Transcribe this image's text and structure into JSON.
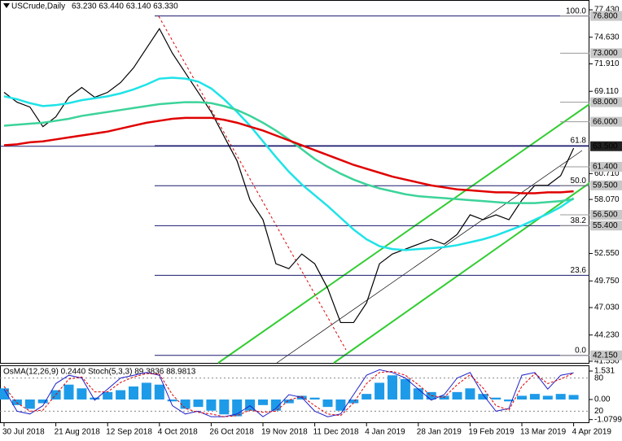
{
  "chart_data": [
    {
      "type": "line",
      "title": "USCrude,Daily",
      "quote": "63.230 63.440 63.140 63.330",
      "categories": [
        "30 Jul 2018",
        null,
        null,
        null,
        "21 Aug 2018",
        null,
        null,
        null,
        "12 Sep 2018",
        null,
        null,
        null,
        "4 Oct 2018",
        null,
        null,
        null,
        "26 Oct 2018",
        null,
        null,
        null,
        "19 Nov 2018",
        null,
        null,
        null,
        "11 Dec 2018",
        null,
        null,
        null,
        "4 Jan 2019",
        null,
        null,
        null,
        "28 Jan 2019",
        null,
        null,
        null,
        "19 Feb 2019",
        null,
        null,
        null,
        "13 Mar 2019",
        null,
        null,
        null,
        "4 Apr 2019"
      ],
      "series": [
        {
          "color": "#000000",
          "values": [
            69.0,
            68.0,
            67.5,
            65.5,
            66.5,
            68.5,
            69.5,
            68.5,
            69.0,
            70.0,
            71.5,
            73.5,
            75.5,
            73.0,
            71.0,
            69.0,
            67.0,
            64.5,
            62.0,
            58.0,
            56.0,
            51.5,
            51.0,
            52.5,
            51.5,
            49.0,
            45.5,
            45.5,
            47.5,
            51.5,
            52.5,
            53.0,
            53.5,
            54.0,
            53.5,
            54.5,
            56.5,
            56.0,
            56.5,
            56.0,
            58.0,
            59.5,
            59.5,
            60.5,
            63.3
          ]
        },
        {
          "color": "#1ee3e8",
          "values": [
            68.6,
            68.3,
            67.9,
            67.6,
            67.7,
            67.9,
            68.2,
            68.4,
            68.6,
            68.9,
            69.3,
            69.8,
            70.4,
            70.5,
            70.4,
            70.1,
            69.4,
            68.3,
            67.0,
            65.6,
            64.0,
            62.4,
            60.9,
            59.6,
            58.5,
            57.4,
            56.2,
            55.0,
            54.0,
            53.3,
            53.0,
            52.9,
            53.0,
            53.1,
            53.2,
            53.4,
            53.7,
            54.0,
            54.4,
            54.9,
            55.4,
            56.0,
            56.6,
            57.3,
            58.2
          ]
        },
        {
          "color": "#3cd39a",
          "values": [
            65.6,
            65.7,
            65.8,
            65.9,
            66.1,
            66.3,
            66.6,
            66.8,
            67.0,
            67.2,
            67.4,
            67.6,
            67.8,
            67.9,
            68.0,
            68.0,
            67.9,
            67.6,
            67.2,
            66.6,
            65.9,
            65.1,
            64.2,
            63.2,
            62.2,
            61.4,
            60.7,
            60.1,
            59.6,
            59.2,
            58.9,
            58.6,
            58.4,
            58.3,
            58.2,
            58.1,
            58.0,
            57.9,
            57.8,
            57.7,
            57.7,
            57.7,
            57.8,
            57.9,
            58.1
          ]
        },
        {
          "color": "#e00000",
          "values": [
            63.6,
            63.7,
            63.9,
            64.0,
            64.2,
            64.4,
            64.6,
            64.8,
            65.0,
            65.3,
            65.6,
            65.9,
            66.1,
            66.3,
            66.4,
            66.4,
            66.4,
            66.2,
            65.9,
            65.5,
            65.1,
            64.6,
            64.1,
            63.6,
            63.1,
            62.6,
            62.1,
            61.6,
            61.2,
            60.8,
            60.4,
            60.1,
            59.8,
            59.5,
            59.3,
            59.1,
            59.0,
            58.9,
            58.8,
            58.8,
            58.7,
            58.7,
            58.8,
            58.8,
            58.9
          ]
        }
      ],
      "ylim": [
        41.3,
        78.43
      ],
      "yticks": [
        {
          "value": 77.43,
          "label": "77.430"
        },
        {
          "value": 74.63,
          "label": "74.630"
        },
        {
          "value": 71.91,
          "label": "71.910"
        },
        {
          "value": 69.11,
          "label": "69.110"
        },
        {
          "value": 60.71,
          "label": "60.710"
        },
        {
          "value": 58.07,
          "label": "58.070"
        },
        {
          "value": 52.55,
          "label": "52.550"
        },
        {
          "value": 49.75,
          "label": "49.750"
        },
        {
          "value": 47.03,
          "label": "47.030"
        },
        {
          "value": 44.23,
          "label": "44.230"
        },
        {
          "value": 41.55,
          "label": "41.550"
        }
      ],
      "levels": [
        {
          "value": 76.8,
          "label": "76.800"
        },
        {
          "value": 73,
          "label": "73.000"
        },
        {
          "value": 68,
          "label": "68.000"
        },
        {
          "value": 66,
          "label": "66.000"
        },
        {
          "value": 61.4,
          "label": "61.400"
        },
        {
          "value": 59.5,
          "label": "59.500"
        },
        {
          "value": 56.5,
          "label": "56.500"
        },
        {
          "value": 55.4,
          "label": "55.400"
        },
        {
          "value": 42.15,
          "label": "42.150"
        }
      ],
      "current": {
        "value": 63.5,
        "label": "63.500"
      },
      "fib_range": [
        42.15,
        76.8
      ],
      "fib": [
        {
          "value": 100,
          "label": "100.0"
        },
        {
          "value": 61.8,
          "label": "61.8"
        },
        {
          "value": 50,
          "label": "50.0"
        },
        {
          "value": 38.2,
          "label": "38.2"
        },
        {
          "value": 23.6,
          "label": "23.6"
        },
        {
          "value": 0,
          "label": "0.0"
        }
      ]
    },
    {
      "type": "bar",
      "title": "OsMA(12,26,9) 0.2440  Stoch(5,3,3) 89.3836 88.9813",
      "series": [
        {
          "color": "#1e9be8",
          "values": [
            0.6,
            -0.3,
            -0.5,
            -0.2,
            0.5,
            0.8,
            0.6,
            0.1,
            0.4,
            0.5,
            0.7,
            0.9,
            0.8,
            -0.1,
            -0.5,
            -0.4,
            -0.6,
            -0.8,
            -0.9,
            -0.6,
            -0.3,
            -0.6,
            -0.2,
            0.2,
            0.1,
            -0.4,
            -0.6,
            -0.2,
            0.3,
            0.9,
            1.3,
            1.1,
            0.6,
            0.4,
            0.2,
            0.4,
            0.6,
            0.3,
            0.1,
            -0.1,
            0.2,
            0.3,
            0.2,
            0.3,
            0.244
          ]
        },
        {
          "axis": "y2",
          "color": "#2020c8",
          "values": [
            60,
            20,
            15,
            30,
            70,
            85,
            80,
            40,
            60,
            80,
            85,
            90,
            85,
            30,
            15,
            20,
            10,
            10,
            15,
            30,
            10,
            25,
            50,
            45,
            20,
            10,
            15,
            50,
            85,
            95,
            90,
            80,
            60,
            40,
            50,
            80,
            90,
            50,
            20,
            25,
            85,
            90,
            60,
            85,
            89.3836
          ]
        },
        {
          "axis": "y2",
          "color": "#e00000",
          "values": [
            65,
            35,
            20,
            22,
            50,
            78,
            82,
            55,
            55,
            72,
            82,
            88,
            87,
            50,
            25,
            18,
            15,
            10,
            12,
            22,
            18,
            20,
            40,
            47,
            30,
            15,
            12,
            35,
            70,
            90,
            92,
            85,
            68,
            48,
            45,
            68,
            86,
            62,
            30,
            22,
            65,
            88,
            70,
            78,
            88.9813
          ]
        }
      ],
      "ylim": [
        -1.269,
        1.794
      ],
      "yticks": [
        1.531,
        {
          "value": 0,
          "label": "0.00"
        },
        -1.07992
      ],
      "y2lim": [
        -1.5,
        101.5
      ],
      "y2ticks": [
        80,
        20
      ]
    }
  ]
}
